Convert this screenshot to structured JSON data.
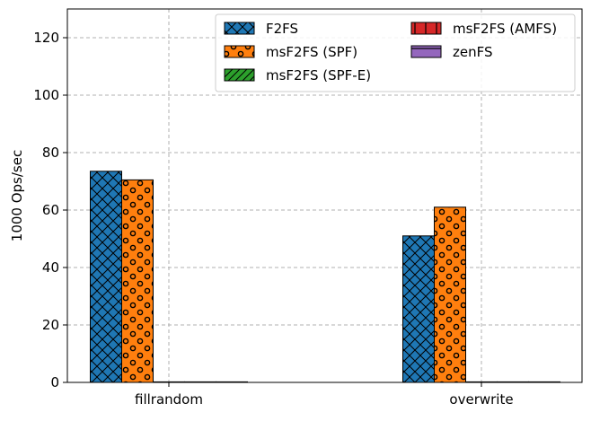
{
  "chart_data": {
    "type": "bar",
    "categories": [
      "fillrandom",
      "overwrite"
    ],
    "ylabel": "1000 Ops/sec",
    "xlabel": "",
    "ylim": [
      0,
      130
    ],
    "yticks": [
      0,
      20,
      40,
      60,
      80,
      100,
      120
    ],
    "grid": true,
    "legend": {
      "placement": "top-right",
      "columns": 2
    },
    "series": [
      {
        "name": "F2FS",
        "values": [
          73.5,
          51.0
        ],
        "color": "#1f77b4",
        "hatch": "crosshatch"
      },
      {
        "name": "msF2FS (SPF)",
        "values": [
          70.5,
          61.0
        ],
        "color": "#ff7f0e",
        "hatch": "circles"
      },
      {
        "name": "msF2FS (SPF-E)",
        "values": [
          0,
          0
        ],
        "color": "#2ca02c",
        "hatch": "diagonal"
      },
      {
        "name": "msF2FS (AMFS)",
        "values": [
          0,
          0
        ],
        "color": "#d62728",
        "hatch": "vertical"
      },
      {
        "name": "zenFS",
        "values": [
          0,
          0
        ],
        "color": "#9467bd",
        "hatch": "horizontal"
      }
    ]
  }
}
